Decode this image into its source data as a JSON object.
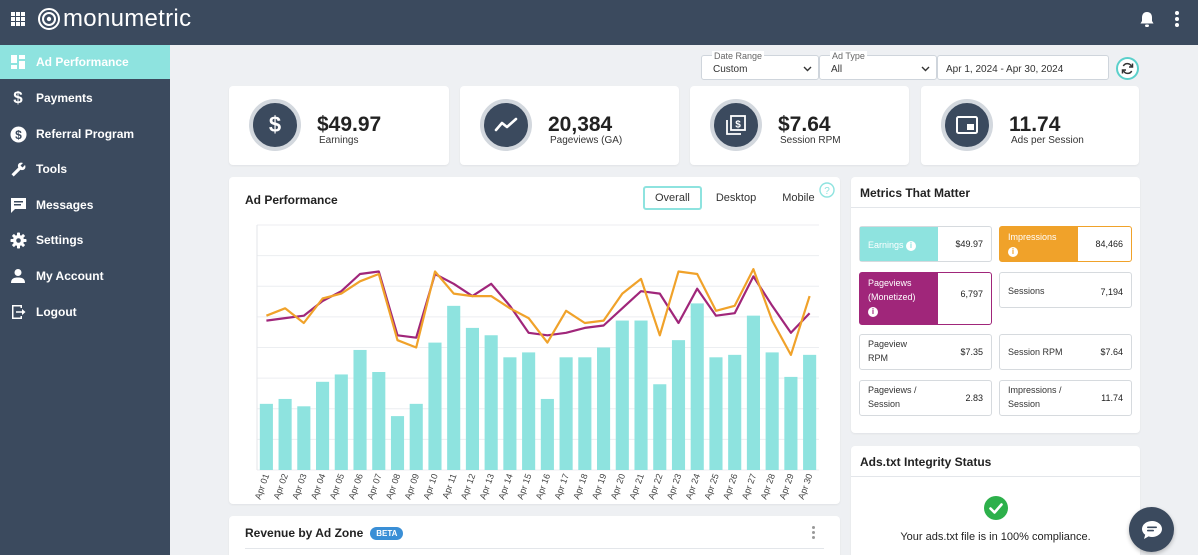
{
  "app": {
    "logo_text": "monumetric"
  },
  "sidebar": {
    "items": [
      {
        "label": "Ad Performance",
        "icon": "dashboard-icon",
        "active": true
      },
      {
        "label": "Payments",
        "icon": "dollar-icon"
      },
      {
        "label": "Referral Program",
        "icon": "dollar-circle-icon"
      },
      {
        "label": "Tools",
        "icon": "wrench-icon"
      },
      {
        "label": "Messages",
        "icon": "message-icon"
      },
      {
        "label": "Settings",
        "icon": "gear-icon"
      },
      {
        "label": "My Account",
        "icon": "person-icon"
      },
      {
        "label": "Logout",
        "icon": "logout-icon"
      }
    ]
  },
  "filters": {
    "date_range": {
      "label": "Date Range",
      "value": "Custom"
    },
    "ad_type": {
      "label": "Ad Type",
      "value": "All"
    },
    "date_value": "Apr 1, 2024 - Apr 30, 2024"
  },
  "kpis": [
    {
      "value": "$49.97",
      "label": "Earnings",
      "icon": "dollar-icon"
    },
    {
      "value": "20,384",
      "label": "Pageviews (GA)",
      "icon": "trend-icon"
    },
    {
      "value": "$7.64",
      "label": "Session RPM",
      "icon": "money-stack-icon"
    },
    {
      "value": "11.74",
      "label": "Ads per Session",
      "icon": "ad-window-icon"
    }
  ],
  "ad_performance": {
    "title": "Ad Performance",
    "tabs": [
      "Overall",
      "Desktop",
      "Mobile"
    ],
    "active_tab": "Overall"
  },
  "chart_data": {
    "type": "bar",
    "categories": [
      "Apr 01",
      "Apr 02",
      "Apr 03",
      "Apr 04",
      "Apr 05",
      "Apr 06",
      "Apr 07",
      "Apr 08",
      "Apr 09",
      "Apr 10",
      "Apr 11",
      "Apr 12",
      "Apr 13",
      "Apr 14",
      "Apr 15",
      "Apr 16",
      "Apr 17",
      "Apr 18",
      "Apr 19",
      "Apr 20",
      "Apr 21",
      "Apr 22",
      "Apr 23",
      "Apr 24",
      "Apr 25",
      "Apr 26",
      "Apr 27",
      "Apr 28",
      "Apr 29",
      "Apr 30"
    ],
    "series": [
      {
        "type": "bar",
        "color": "#8ee3df",
        "values": [
          27,
          29,
          26,
          36,
          39,
          49,
          40,
          22,
          27,
          52,
          67,
          58,
          55,
          46,
          48,
          29,
          46,
          46,
          50,
          61,
          61,
          35,
          53,
          68,
          46,
          47,
          63,
          48,
          38,
          47
        ]
      },
      {
        "type": "line",
        "color": "#a0267a",
        "values": [
          61,
          62,
          63,
          69,
          73,
          80,
          81,
          55,
          54,
          80,
          76,
          71,
          76,
          67,
          56,
          55,
          56,
          58,
          59,
          66,
          73,
          72,
          60,
          74,
          63,
          64,
          79,
          67,
          56,
          64
        ]
      },
      {
        "type": "line",
        "color": "#f0a22a",
        "values": [
          63,
          66,
          60,
          70,
          72,
          77,
          80,
          53,
          50,
          81,
          72,
          71,
          71,
          66,
          62,
          52,
          65,
          60,
          61,
          72,
          78,
          55,
          81,
          80,
          65,
          67,
          82,
          61,
          47,
          71
        ]
      }
    ],
    "ylim": [
      0,
      100
    ],
    "grid": true,
    "legend": "none"
  },
  "metrics": {
    "title": "Metrics That Matter",
    "items": [
      {
        "label": "Earnings",
        "value": "$49.97",
        "color": "#8ee3df",
        "info": true
      },
      {
        "label": "Impressions",
        "value": "84,466",
        "color": "#f0a22a",
        "info": true
      },
      {
        "label": "Pageviews (Monetized)",
        "value": "6,797",
        "color": "#a0267a",
        "info": true
      },
      {
        "label": "Sessions",
        "value": "7,194"
      },
      {
        "label": "Pageview RPM",
        "value": "$7.35"
      },
      {
        "label": "Session RPM",
        "value": "$7.64"
      },
      {
        "label": "Pageviews / Session",
        "value": "2.83"
      },
      {
        "label": "Impressions / Session",
        "value": "11.74"
      }
    ]
  },
  "ads_txt": {
    "title": "Ads.txt Integrity Status",
    "message": "Your ads.txt file is in 100% compliance."
  },
  "revenue_zone": {
    "title": "Revenue by Ad Zone",
    "badge": "BETA"
  }
}
